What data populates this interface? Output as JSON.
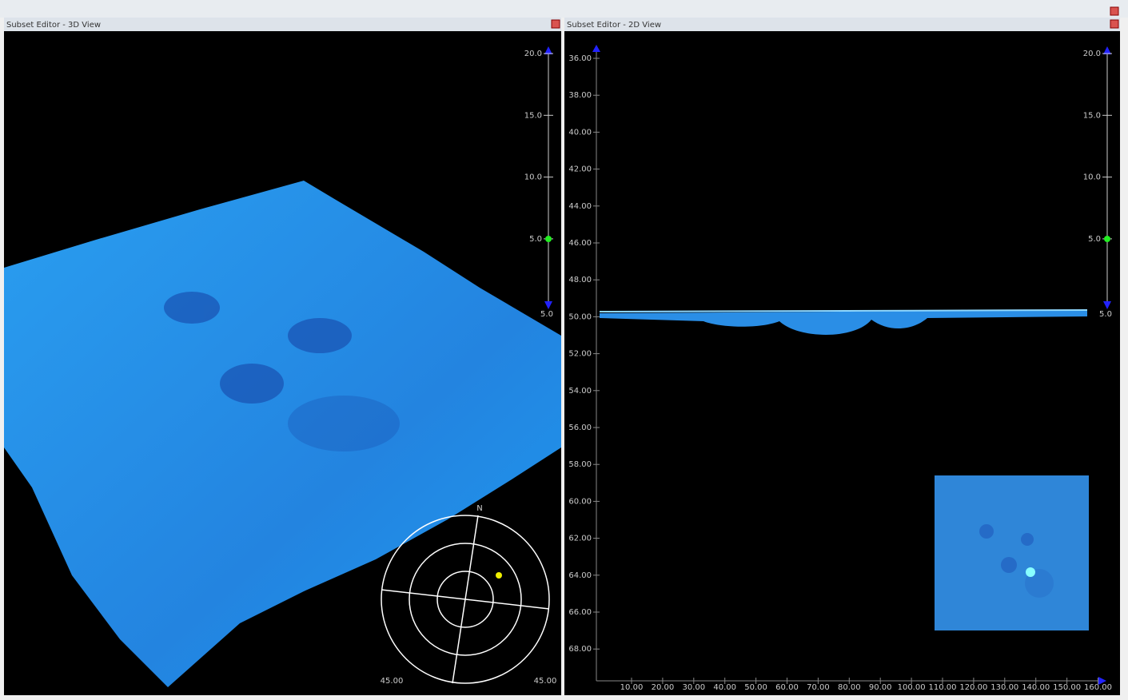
{
  "left_panel": {
    "title": "Subset Editor - 3D View",
    "slider": {
      "labels": [
        "20.0",
        "15.0",
        "10.0",
        "5.0"
      ],
      "bottom_label": "5.0"
    },
    "compass": {
      "north": "N",
      "left_label": "45.00",
      "right_label": "45.00"
    }
  },
  "right_panel": {
    "title": "Subset Editor - 2D View",
    "slider": {
      "labels": [
        "20.0",
        "15.0",
        "10.0",
        "5.0"
      ],
      "bottom_label": "5.0"
    },
    "y_axis": {
      "labels": [
        "36.00",
        "38.00",
        "40.00",
        "42.00",
        "44.00",
        "46.00",
        "48.00",
        "50.00",
        "52.00",
        "54.00",
        "56.00",
        "58.00",
        "60.00",
        "62.00",
        "64.00",
        "66.00",
        "68.00"
      ]
    },
    "x_axis": {
      "labels": [
        "10.00",
        "20.00",
        "30.00",
        "40.00",
        "50.00",
        "60.00",
        "70.00",
        "80.00",
        "90.00",
        "100.00",
        "110.00",
        "120.00",
        "130.00",
        "140.00",
        "150.00",
        "160.00"
      ]
    }
  }
}
